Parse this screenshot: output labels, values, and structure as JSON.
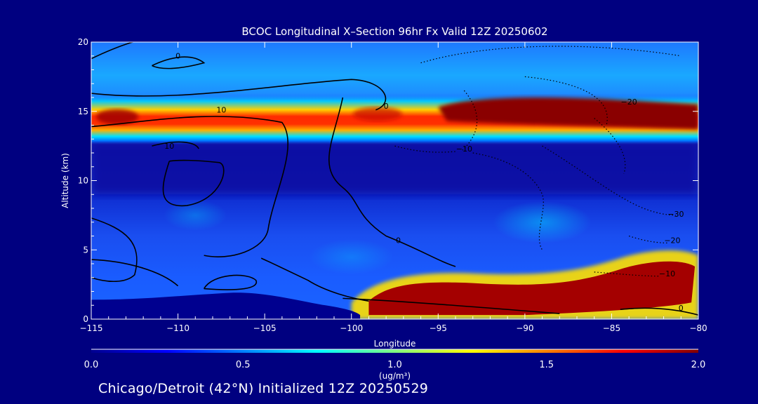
{
  "chart_data": {
    "type": "heatmap",
    "title": "BCOC Longitudinal X–Section 96hr  Fx Valid 12Z 20250602",
    "xlabel": "Longitude",
    "ylabel": "Altitude (km)",
    "xlim": [
      -115,
      -80
    ],
    "ylim": [
      0,
      20
    ],
    "x_ticks": [
      -115,
      -110,
      -105,
      -100,
      -95,
      -90,
      -85,
      -80
    ],
    "x_tick_labels": [
      "−115",
      "−110",
      "−105",
      "−100",
      "−95",
      "−90",
      "−85",
      "−80"
    ],
    "y_ticks": [
      0,
      5,
      10,
      15,
      20
    ],
    "y_tick_labels": [
      "0",
      "5",
      "10",
      "15",
      "20"
    ],
    "colorbar": {
      "min": 0.0,
      "max": 2.0,
      "ticks": [
        0.0,
        0.5,
        1.0,
        1.5,
        2.0
      ],
      "tick_labels": [
        "0.0",
        "0.5",
        "1.0",
        "1.5",
        "2.0"
      ],
      "label_main": "1.0",
      "label_units": "(ug/m³)"
    },
    "features": [
      {
        "type": "band",
        "name": "upper layer",
        "alt_km": [
          13.2,
          15.8
        ],
        "lon": [
          -115,
          -80
        ],
        "peak_value": 2.0
      },
      {
        "type": "blob",
        "name": "lower plume",
        "alt_km": [
          0.5,
          3.5
        ],
        "lon": [
          -99,
          -80
        ],
        "peak_value": 2.0
      }
    ],
    "contour_labels": [
      {
        "text": "0",
        "lon": -110,
        "alt": 18.8
      },
      {
        "text": "10",
        "lon": -107.5,
        "alt": 14.9
      },
      {
        "text": "10",
        "lon": -110.5,
        "alt": 12.3
      },
      {
        "text": "0",
        "lon": -98,
        "alt": 15.2
      },
      {
        "text": "−10",
        "lon": -93.5,
        "alt": 12.1
      },
      {
        "text": "−20",
        "lon": -84,
        "alt": 15.5
      },
      {
        "text": "−30",
        "lon": -81.3,
        "alt": 7.4
      },
      {
        "text": "−20",
        "lon": -81.5,
        "alt": 5.5
      },
      {
        "text": "−10",
        "lon": -81.8,
        "alt": 3.1
      },
      {
        "text": "0",
        "lon": -81,
        "alt": 0.6
      },
      {
        "text": "0",
        "lon": -97.3,
        "alt": 5.5
      }
    ]
  },
  "footer_text": "Chicago/Detroit (42°N) Initialized 12Z 20250529",
  "colors": {
    "background": "#000080",
    "terrain": "#00008f",
    "max_value": "#800000"
  }
}
